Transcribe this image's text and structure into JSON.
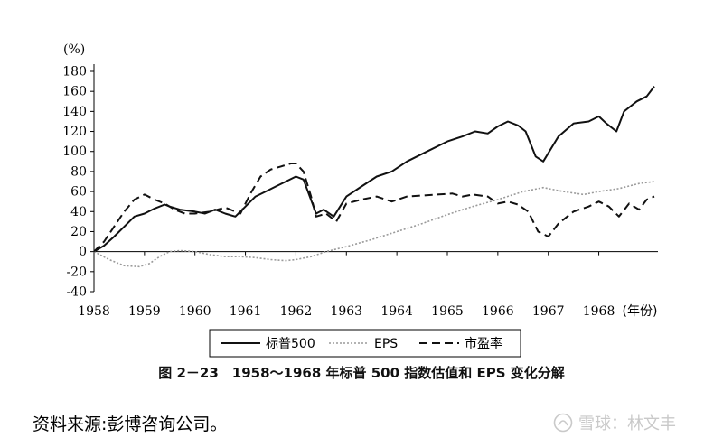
{
  "chart_data": {
    "type": "line",
    "unit_label": "(%)",
    "x_labels": [
      "1958",
      "1959",
      "1960",
      "1961",
      "1962",
      "1963",
      "1964",
      "1965",
      "1966",
      "1967",
      "1968"
    ],
    "x_axis_suffix": "(年份)",
    "xlim": [
      1958,
      1969.1
    ],
    "ylim": [
      -40,
      180
    ],
    "yticks": [
      -40,
      -20,
      0,
      20,
      40,
      60,
      80,
      100,
      120,
      140,
      160,
      180
    ],
    "grid": false,
    "legend_position": "bottom",
    "series": [
      {
        "name": "标普500",
        "style": "solid",
        "color": "#111111",
        "x": [
          1958.0,
          1958.2,
          1958.4,
          1958.6,
          1958.8,
          1959.0,
          1959.2,
          1959.4,
          1959.5,
          1959.7,
          1960.0,
          1960.2,
          1960.4,
          1960.6,
          1960.8,
          1961.0,
          1961.2,
          1961.4,
          1961.6,
          1961.8,
          1962.0,
          1962.15,
          1962.4,
          1962.55,
          1962.75,
          1963.0,
          1963.3,
          1963.6,
          1963.9,
          1964.2,
          1964.6,
          1965.0,
          1965.3,
          1965.55,
          1965.8,
          1966.0,
          1966.2,
          1966.4,
          1966.55,
          1966.75,
          1966.9,
          1967.2,
          1967.5,
          1967.8,
          1968.0,
          1968.15,
          1968.35,
          1968.5,
          1968.75,
          1968.95,
          1969.1
        ],
        "y": [
          0,
          6,
          15,
          25,
          35,
          38,
          43,
          47,
          45,
          42,
          40,
          38,
          42,
          38,
          35,
          45,
          55,
          60,
          65,
          70,
          75,
          72,
          38,
          42,
          35,
          55,
          65,
          75,
          80,
          90,
          100,
          110,
          115,
          120,
          118,
          125,
          130,
          126,
          120,
          95,
          90,
          115,
          128,
          130,
          135,
          128,
          120,
          140,
          150,
          155,
          165
        ]
      },
      {
        "name": "EPS",
        "style": "dotted",
        "color": "#9a9a9a",
        "x": [
          1958.0,
          1958.3,
          1958.6,
          1958.9,
          1959.1,
          1959.3,
          1959.5,
          1959.7,
          1960.0,
          1960.3,
          1960.6,
          1960.9,
          1961.2,
          1961.5,
          1961.8,
          1962.0,
          1962.3,
          1962.6,
          1963.0,
          1963.5,
          1964.0,
          1964.5,
          1965.0,
          1965.5,
          1966.0,
          1966.5,
          1966.9,
          1967.3,
          1967.7,
          1968.0,
          1968.4,
          1968.8,
          1969.1
        ],
        "y": [
          0,
          -8,
          -14,
          -15,
          -12,
          -5,
          0,
          1,
          0,
          -3,
          -5,
          -5,
          -6,
          -8,
          -9,
          -8,
          -5,
          0,
          5,
          12,
          20,
          28,
          37,
          45,
          52,
          60,
          64,
          60,
          57,
          60,
          63,
          68,
          70
        ]
      },
      {
        "name": "市盈率",
        "style": "dashed",
        "color": "#111111",
        "x": [
          1958.0,
          1958.2,
          1958.4,
          1958.6,
          1958.8,
          1959.0,
          1959.2,
          1959.4,
          1959.6,
          1959.8,
          1960.0,
          1960.3,
          1960.6,
          1960.9,
          1961.1,
          1961.3,
          1961.5,
          1961.7,
          1961.9,
          1962.0,
          1962.15,
          1962.3,
          1962.4,
          1962.6,
          1962.8,
          1963.0,
          1963.3,
          1963.6,
          1963.9,
          1964.2,
          1964.5,
          1964.8,
          1965.1,
          1965.3,
          1965.5,
          1965.8,
          1966.0,
          1966.2,
          1966.4,
          1966.6,
          1966.8,
          1967.0,
          1967.2,
          1967.5,
          1967.8,
          1968.0,
          1968.2,
          1968.4,
          1968.6,
          1968.8,
          1968.95,
          1969.1
        ],
        "y": [
          0,
          10,
          25,
          40,
          52,
          57,
          52,
          48,
          42,
          38,
          38,
          40,
          44,
          38,
          58,
          75,
          82,
          85,
          88,
          88,
          80,
          55,
          35,
          38,
          30,
          48,
          52,
          55,
          50,
          55,
          56,
          57,
          58,
          55,
          57,
          55,
          48,
          50,
          47,
          40,
          20,
          15,
          28,
          40,
          45,
          50,
          45,
          35,
          48,
          42,
          52,
          55
        ]
      }
    ],
    "title": "图 2－23　1958～1968 年标普 500 指数估值和 EPS 变化分解"
  },
  "source": "资料来源:彭博咨询公司。",
  "watermark": "雪球：林文丰"
}
